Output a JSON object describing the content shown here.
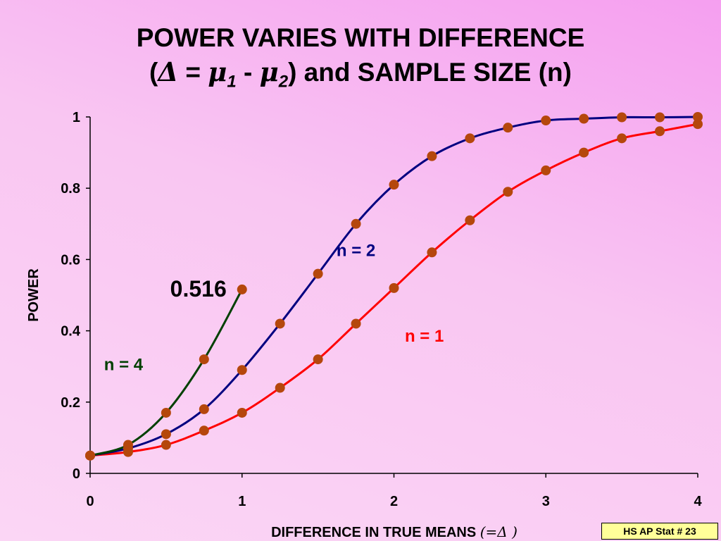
{
  "title": {
    "line1": "POWER VARIES WITH DIFFERENCE",
    "open_paren": "(",
    "delta": "Δ",
    "equals": " = ",
    "mu_a": "μ",
    "sub_a": "1",
    "minus": " - ",
    "mu_b": "μ",
    "sub_b": "2",
    "close_rest": ")  and SAMPLE SIZE (n)"
  },
  "badge": "HS AP Stat # 23",
  "colors": {
    "n1": "#ff0000",
    "n2": "#000080",
    "n4": "#004000",
    "marker": "#b5470c",
    "axis": "#000000"
  },
  "chart_data": {
    "type": "line",
    "xlabel": "DIFFERENCE IN TRUE MEANS",
    "xlabel_suffix": "(=Δ )",
    "ylabel": "POWER",
    "xlim": [
      0,
      4
    ],
    "ylim": [
      0,
      1
    ],
    "x_ticks": [
      "0",
      "1",
      "2",
      "3",
      "4"
    ],
    "y_ticks": [
      "0",
      "0.2",
      "0.4",
      "0.6",
      "0.8",
      "1"
    ],
    "grid": false,
    "legend": "inline labels",
    "annotation": {
      "text": "0.516",
      "x": 1,
      "y": 0.516
    },
    "series": [
      {
        "name": "n = 4",
        "label_pos": [
          0.22,
          0.29
        ],
        "x": [
          0,
          0.25,
          0.5,
          0.75,
          1
        ],
        "y": [
          0.05,
          0.08,
          0.17,
          0.32,
          0.516
        ]
      },
      {
        "name": "n = 2",
        "label_pos": [
          1.75,
          0.61
        ],
        "x": [
          0,
          0.25,
          0.5,
          0.75,
          1,
          1.25,
          1.5,
          1.75,
          2,
          2.25,
          2.5,
          2.75,
          3,
          3.25,
          3.5,
          3.75,
          4
        ],
        "y": [
          0.05,
          0.07,
          0.11,
          0.18,
          0.29,
          0.42,
          0.56,
          0.7,
          0.81,
          0.89,
          0.94,
          0.97,
          0.99,
          0.995,
          0.999,
          0.999,
          1.0
        ]
      },
      {
        "name": "n = 1",
        "label_pos": [
          2.2,
          0.37
        ],
        "x": [
          0,
          0.25,
          0.5,
          0.75,
          1,
          1.25,
          1.5,
          1.75,
          2,
          2.25,
          2.5,
          2.75,
          3,
          3.25,
          3.5,
          3.75,
          4
        ],
        "y": [
          0.05,
          0.06,
          0.08,
          0.12,
          0.17,
          0.24,
          0.32,
          0.42,
          0.52,
          0.62,
          0.71,
          0.79,
          0.85,
          0.9,
          0.94,
          0.96,
          0.98
        ]
      }
    ]
  }
}
